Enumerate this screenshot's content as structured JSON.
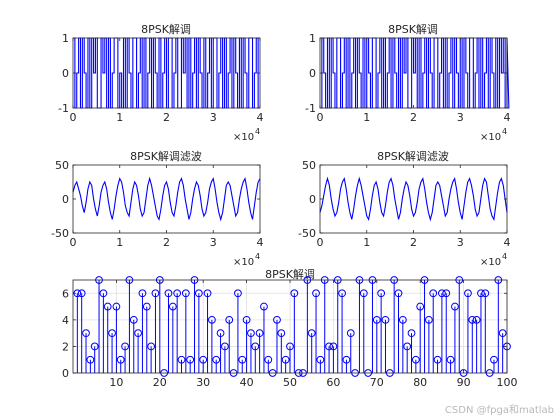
{
  "watermark": "CSDN @fpga和matlab",
  "colors": {
    "signal": "#0000ff",
    "axis": "#262626",
    "grid": "#e0e0e0",
    "background": "#ffffff"
  },
  "chart_data": [
    {
      "type": "line",
      "title": "8PSK解调",
      "xlim": [
        0,
        40000
      ],
      "ylim": [
        -1,
        1
      ],
      "xticks": [
        0,
        1,
        2,
        3,
        4
      ],
      "yticks": [
        -1,
        0,
        1
      ],
      "x_exponent_label": "×10",
      "x_exponent": "4",
      "style": "steps",
      "x_step": 400,
      "y": [
        1,
        -1,
        0,
        1,
        -1,
        1,
        0,
        -1,
        1,
        -1,
        1,
        0,
        1,
        -1,
        -1,
        1,
        0,
        1,
        -1,
        1,
        -1,
        0,
        1,
        1,
        -1,
        0,
        -1,
        1,
        -1,
        1,
        0,
        -1,
        1,
        1,
        -1,
        0,
        1,
        -1,
        1,
        -1,
        0,
        1,
        -1,
        1,
        0,
        -1,
        1,
        -1,
        0,
        1,
        -1,
        1,
        1,
        -1,
        0,
        1,
        -1,
        -1,
        1,
        0,
        1,
        -1,
        1,
        -1,
        0,
        1,
        -1,
        1,
        0,
        -1,
        1,
        -1,
        0,
        1,
        -1,
        1,
        1,
        -1,
        0,
        1,
        -1,
        1,
        -1,
        0,
        1,
        -1,
        1,
        0,
        -1,
        1,
        -1,
        1,
        0,
        -1,
        1,
        1,
        -1,
        0,
        1,
        -1
      ]
    },
    {
      "type": "line",
      "title": "8PSK解调",
      "xlim": [
        0,
        40000
      ],
      "ylim": [
        -1,
        1
      ],
      "xticks": [
        0,
        1,
        2,
        3,
        4
      ],
      "yticks": [
        -1,
        0,
        1
      ],
      "x_exponent_label": "×10",
      "x_exponent": "4",
      "style": "steps",
      "x_step": 400,
      "y": [
        -1,
        1,
        0,
        -1,
        1,
        -1,
        1,
        0,
        -1,
        1,
        1,
        -1,
        0,
        1,
        -1,
        1,
        -1,
        0,
        1,
        -1,
        1,
        0,
        -1,
        1,
        -1,
        1,
        0,
        -1,
        1,
        1,
        -1,
        0,
        1,
        -1,
        1,
        -1,
        0,
        1,
        -1,
        1,
        0,
        -1,
        1,
        -1,
        1,
        0,
        1,
        -1,
        -1,
        1,
        0,
        1,
        -1,
        1,
        -1,
        0,
        1,
        -1,
        1,
        0,
        -1,
        1,
        1,
        -1,
        0,
        1,
        -1,
        1,
        -1,
        0,
        1,
        -1,
        1,
        0,
        -1,
        1,
        -1,
        1,
        0,
        -1,
        1,
        1,
        -1,
        0,
        1,
        -1,
        1,
        -1,
        0,
        1,
        -1,
        1,
        0,
        -1,
        1,
        -1,
        1,
        0,
        1,
        -1,
        1,
        -1
      ]
    },
    {
      "type": "line",
      "title": "8PSK解调滤波",
      "xlim": [
        0,
        40000
      ],
      "ylim": [
        -50,
        50
      ],
      "xticks": [
        0,
        1,
        2,
        3,
        4
      ],
      "yticks": [
        -50,
        0,
        50
      ],
      "x_exponent_label": "×10",
      "x_exponent": "4",
      "style": "line",
      "x_step": 400,
      "y": [
        10,
        20,
        25,
        15,
        5,
        -10,
        -20,
        -5,
        15,
        25,
        20,
        0,
        -15,
        -25,
        -10,
        10,
        20,
        25,
        15,
        -5,
        -20,
        -30,
        -15,
        5,
        20,
        30,
        25,
        10,
        -10,
        -20,
        -25,
        -5,
        15,
        25,
        20,
        5,
        -15,
        -25,
        -20,
        0,
        20,
        30,
        20,
        5,
        -10,
        -25,
        -30,
        -15,
        5,
        20,
        25,
        15,
        -5,
        -20,
        -25,
        -10,
        10,
        25,
        30,
        20,
        0,
        -15,
        -30,
        -20,
        0,
        15,
        25,
        20,
        5,
        -15,
        -25,
        -20,
        -5,
        15,
        25,
        30,
        15,
        -5,
        -20,
        -30,
        -20,
        0,
        20,
        25,
        20,
        5,
        -10,
        -25,
        -20,
        0,
        15,
        25,
        30,
        15,
        -5,
        -20,
        -30,
        -10,
        10,
        25,
        30
      ]
    },
    {
      "type": "line",
      "title": "8PSK解调滤波",
      "xlim": [
        0,
        40000
      ],
      "ylim": [
        -50,
        50
      ],
      "xticks": [
        0,
        1,
        2,
        3,
        4
      ],
      "yticks": [
        -50,
        0,
        50
      ],
      "x_exponent_label": "×10",
      "x_exponent": "4",
      "style": "line",
      "x_step": 400,
      "y": [
        -20,
        -10,
        5,
        20,
        30,
        20,
        0,
        -15,
        -25,
        -20,
        -5,
        15,
        25,
        30,
        15,
        -5,
        -20,
        -30,
        -15,
        5,
        20,
        30,
        20,
        5,
        -10,
        -25,
        -30,
        -15,
        5,
        20,
        25,
        15,
        -5,
        -20,
        -25,
        -10,
        10,
        25,
        30,
        20,
        0,
        -15,
        -30,
        -20,
        0,
        15,
        25,
        20,
        5,
        -15,
        -25,
        -20,
        -5,
        15,
        25,
        30,
        15,
        -5,
        -20,
        -30,
        -20,
        0,
        20,
        25,
        20,
        5,
        -10,
        -25,
        -20,
        0,
        15,
        25,
        30,
        15,
        -5,
        -20,
        -30,
        -10,
        10,
        25,
        30,
        20,
        5,
        -15,
        -25,
        -20,
        0,
        20,
        30,
        25,
        5,
        -15,
        -25,
        -30,
        -10,
        10,
        25,
        30,
        20,
        0,
        -20
      ]
    },
    {
      "type": "stem",
      "title": "8PSK解调",
      "xlim": [
        0,
        100
      ],
      "ylim": [
        0,
        7
      ],
      "xticks": [
        10,
        20,
        30,
        40,
        50,
        60,
        70,
        80,
        90,
        100
      ],
      "yticks": [
        0,
        2,
        4,
        6
      ],
      "grid": true,
      "x": [
        1,
        2,
        3,
        4,
        5,
        6,
        7,
        8,
        9,
        10,
        11,
        12,
        13,
        14,
        15,
        16,
        17,
        18,
        19,
        20,
        21,
        22,
        23,
        24,
        25,
        26,
        27,
        28,
        29,
        30,
        31,
        32,
        33,
        34,
        35,
        36,
        37,
        38,
        39,
        40,
        41,
        42,
        43,
        44,
        45,
        46,
        47,
        48,
        49,
        50,
        51,
        52,
        53,
        54,
        55,
        56,
        57,
        58,
        59,
        60,
        61,
        62,
        63,
        64,
        65,
        66,
        67,
        68,
        69,
        70,
        71,
        72,
        73,
        74,
        75,
        76,
        77,
        78,
        79,
        80,
        81,
        82,
        83,
        84,
        85,
        86,
        87,
        88,
        89,
        90,
        91,
        92,
        93,
        94,
        95,
        96,
        97,
        98,
        99,
        100
      ],
      "y": [
        6,
        6,
        3,
        1,
        2,
        7,
        6,
        5,
        3,
        5,
        1,
        2,
        7,
        4,
        3,
        6,
        5,
        2,
        6,
        7,
        0,
        6,
        5,
        6,
        1,
        6,
        1,
        7,
        6,
        1,
        6,
        4,
        1,
        3,
        2,
        4,
        0,
        6,
        1,
        4,
        3,
        2,
        3,
        5,
        1,
        0,
        4,
        3,
        1,
        2,
        6,
        0,
        0,
        7,
        3,
        6,
        1,
        7,
        2,
        2,
        7,
        6,
        1,
        3,
        0,
        7,
        6,
        0,
        7,
        4,
        6,
        4,
        0,
        7,
        6,
        4,
        2,
        3,
        1,
        5,
        7,
        4,
        6,
        1,
        6,
        6,
        1,
        5,
        7,
        0,
        6,
        4,
        4,
        6,
        6,
        0,
        1,
        7,
        3,
        2
      ]
    }
  ]
}
